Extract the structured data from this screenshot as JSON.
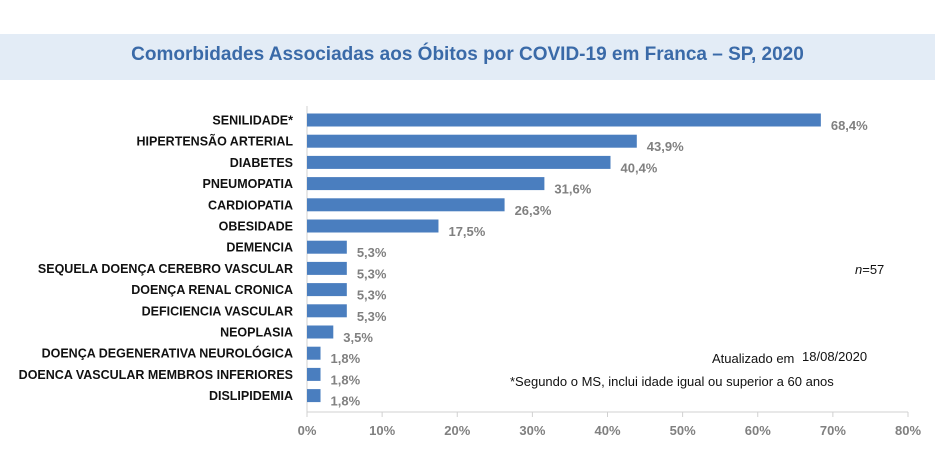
{
  "chart_data": {
    "type": "bar",
    "orientation": "horizontal",
    "title": "Comorbidades Associadas aos Óbitos por COVID-19 em Franca – SP, 2020",
    "categories": [
      "SENILIDADE*",
      "HIPERTENSÃO ARTERIAL",
      "DIABETES",
      "PNEUMOPATIA",
      "CARDIOPATIA",
      "OBESIDADE",
      "DEMENCIA",
      "SEQUELA DOENÇA CEREBRO VASCULAR",
      "DOENÇA RENAL CRONICA",
      "DEFICIENCIA VASCULAR",
      "NEOPLASIA",
      "DOENÇA DEGENERATIVA NEUROLÓGICA",
      "DOENCA VASCULAR MEMBROS INFERIORES",
      "DISLIPIDEMIA"
    ],
    "values": [
      68.4,
      43.9,
      40.4,
      31.6,
      26.3,
      17.5,
      5.3,
      5.3,
      5.3,
      5.3,
      3.5,
      1.8,
      1.8,
      1.8
    ],
    "value_labels": [
      "68,4%",
      "43,9%",
      "40,4%",
      "31,6%",
      "26,3%",
      "17,5%",
      "5,3%",
      "5,3%",
      "5,3%",
      "5,3%",
      "3,5%",
      "1,8%",
      "1,8%",
      "1,8%"
    ],
    "xlim": [
      0,
      80
    ],
    "xticks": [
      "0%",
      "10%",
      "20%",
      "30%",
      "40%",
      "50%",
      "60%",
      "70%",
      "80%"
    ],
    "xgrid": true,
    "bar_color": "#4a7ebf"
  },
  "notes": {
    "n_label": "n",
    "n_value": "=57",
    "updated_label": "Atualizado em",
    "updated_date": "18/08/2020",
    "footnote": "*Segundo o MS, inclui idade igual ou superior a 60 anos"
  }
}
